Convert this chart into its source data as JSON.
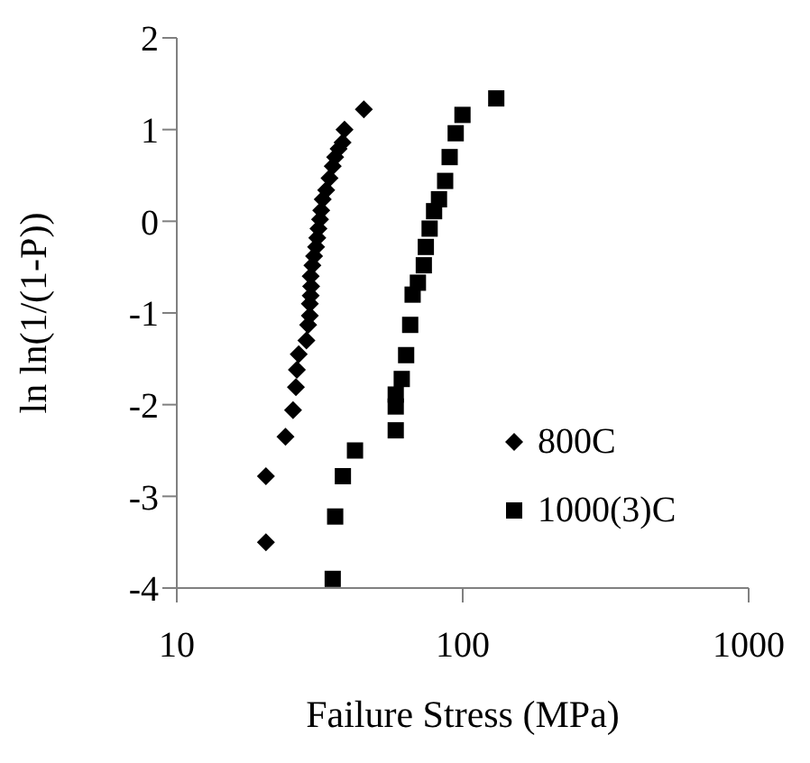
{
  "chart_data": {
    "type": "scatter",
    "xlabel": "Failure Stress (MPa)",
    "ylabel": "ln ln(1/(1-P))",
    "log": "x",
    "xlim": [
      10,
      1000
    ],
    "xticks": [
      10,
      100,
      1000
    ],
    "ylim": [
      -4,
      2
    ],
    "yticks": [
      -4,
      -3,
      -2,
      -1,
      0,
      1,
      2
    ],
    "grid": false,
    "legend": "right",
    "series": [
      {
        "name": "800C",
        "color": "#000000",
        "marker": "diamond",
        "x": [
          20.5,
          20.5,
          24.0,
          25.5,
          26.1,
          26.3,
          26.7,
          28.4,
          28.8,
          29.2,
          29.2,
          29.4,
          29.5,
          29.4,
          29.8,
          30.2,
          30.7,
          31.0,
          31.3,
          31.7,
          32.0,
          32.4,
          33.3,
          34.2,
          35.1,
          35.8,
          36.8,
          38.0,
          38.6,
          45.1
        ],
        "values": [
          -3.5,
          -2.78,
          -2.35,
          -2.06,
          -1.81,
          -1.62,
          -1.45,
          -1.3,
          -1.13,
          -1.03,
          -0.9,
          -0.81,
          -0.71,
          -0.6,
          -0.48,
          -0.38,
          -0.28,
          -0.18,
          -0.08,
          0.02,
          0.12,
          0.24,
          0.34,
          0.47,
          0.6,
          0.7,
          0.79,
          0.86,
          1.0,
          1.22
        ]
      },
      {
        "name": "1000(3)C",
        "color": "#000000",
        "marker": "square",
        "x": [
          35.1,
          35.8,
          38.1,
          42.0,
          58.3,
          58.3,
          58.3,
          61.2,
          63.4,
          65.5,
          66.8,
          69.7,
          73.1,
          74.3,
          76.6,
          79.4,
          82.6,
          86.8,
          90.0,
          94.5,
          99.8,
          131
        ],
        "values": [
          -3.9,
          -3.22,
          -2.78,
          -2.5,
          -2.28,
          -2.02,
          -1.89,
          -1.72,
          -1.46,
          -1.13,
          -0.8,
          -0.67,
          -0.48,
          -0.28,
          -0.08,
          0.11,
          0.24,
          0.44,
          0.7,
          0.96,
          1.16,
          1.34
        ]
      }
    ]
  }
}
